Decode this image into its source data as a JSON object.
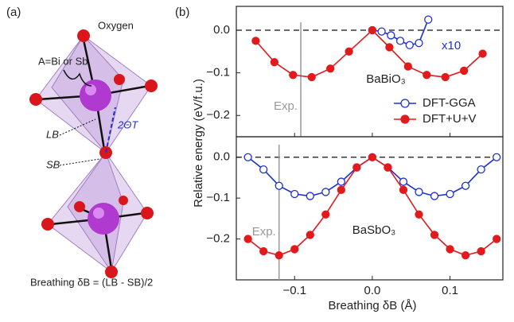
{
  "panel_a": {
    "label": "(a)",
    "oxygen": "Oxygen",
    "a_site": "A=Bi or Sb",
    "lb": "LB",
    "sb": "SB",
    "angle": "2ΘT",
    "formula": "Breathing δB = (LB - SB)/2"
  },
  "panel_b": {
    "label": "(b)",
    "y_label": "Relative energy (eV/f.u.)",
    "x_label": "Breathing δB (Å)"
  },
  "chart_data": [
    {
      "type": "line",
      "compound": "BaBiO₃",
      "xlim": [
        -0.175,
        0.168
      ],
      "ylim": [
        -0.25,
        0.056
      ],
      "yticks": [
        {
          "value": 0,
          "label": "0.0"
        },
        {
          "value": -0.1,
          "label": "−0.1"
        },
        {
          "value": -0.2,
          "label": "−0.2"
        }
      ],
      "hline": 0,
      "exp": {
        "x": -0.092,
        "label": "Exp."
      },
      "legend": "right",
      "annotation": {
        "text": "x10",
        "color": "#1f2fd6"
      },
      "series": [
        {
          "name": "DFT-GGA",
          "color": "#1f2fd6",
          "marker": "open",
          "x": [
            0,
            0.012,
            0.024,
            0.036,
            0.048,
            0.06,
            0.072
          ],
          "values": [
            0,
            -0.003,
            -0.012,
            -0.025,
            -0.035,
            -0.03,
            0.025
          ]
        },
        {
          "name": "DFT+U+V",
          "color": "#e31a1c",
          "marker": "filled",
          "x": [
            -0.15,
            -0.126,
            -0.102,
            -0.078,
            -0.054,
            -0.03,
            0,
            0.022,
            0.046,
            0.07,
            0.094,
            0.118,
            0.142
          ],
          "values": [
            -0.025,
            -0.075,
            -0.105,
            -0.11,
            -0.09,
            -0.05,
            0,
            -0.04,
            -0.085,
            -0.105,
            -0.11,
            -0.095,
            -0.055
          ]
        }
      ]
    },
    {
      "type": "line",
      "compound": "BaSbO₃",
      "xlim": [
        -0.175,
        0.168
      ],
      "ylim": [
        -0.3,
        0.05
      ],
      "yticks": [
        {
          "value": 0,
          "label": "0.0"
        },
        {
          "value": -0.1,
          "label": "−0.1"
        },
        {
          "value": -0.2,
          "label": "−0.2"
        }
      ],
      "xticks": [
        {
          "value": -0.1,
          "label": "−0.1"
        },
        {
          "value": 0,
          "label": "0.0"
        },
        {
          "value": 0.1,
          "label": "0.1"
        }
      ],
      "hline": 0,
      "exp": {
        "x": -0.12,
        "label": "Exp."
      },
      "series": [
        {
          "color": "#1f2fd6",
          "marker": "open",
          "x": [
            -0.16,
            -0.14,
            -0.12,
            -0.1,
            -0.08,
            -0.06,
            -0.04,
            -0.02,
            0,
            0.02,
            0.04,
            0.06,
            0.08,
            0.1,
            0.12,
            0.14,
            0.16
          ],
          "values": [
            0,
            -0.03,
            -0.07,
            -0.09,
            -0.095,
            -0.085,
            -0.06,
            -0.025,
            0,
            -0.025,
            -0.06,
            -0.085,
            -0.095,
            -0.09,
            -0.07,
            -0.03,
            0
          ]
        },
        {
          "color": "#e31a1c",
          "marker": "filled",
          "x": [
            -0.16,
            -0.14,
            -0.12,
            -0.1,
            -0.08,
            -0.06,
            -0.04,
            -0.02,
            0,
            0.02,
            0.04,
            0.06,
            0.08,
            0.1,
            0.12,
            0.14,
            0.16
          ],
          "values": [
            -0.2,
            -0.23,
            -0.24,
            -0.225,
            -0.19,
            -0.14,
            -0.08,
            -0.025,
            0,
            -0.025,
            -0.08,
            -0.14,
            -0.19,
            -0.225,
            -0.24,
            -0.23,
            -0.2
          ]
        }
      ]
    }
  ]
}
